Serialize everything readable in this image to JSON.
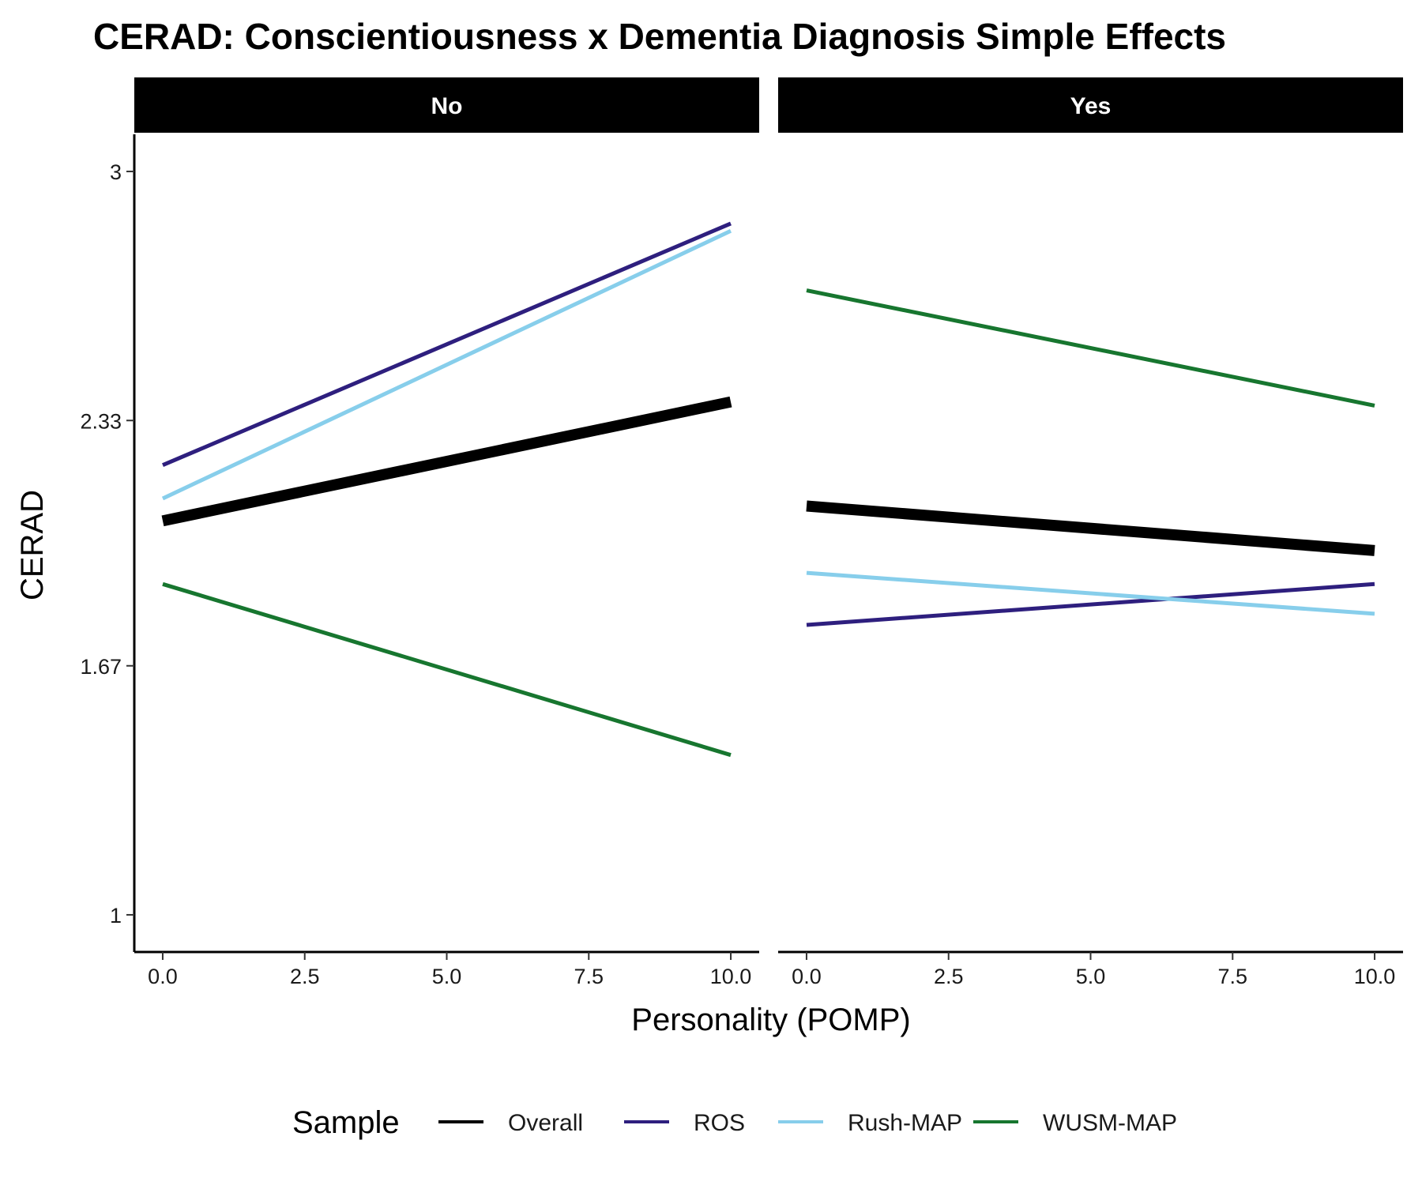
{
  "chart_data": {
    "type": "line",
    "title": "CERAD: Conscientiousness x Dementia Diagnosis Simple Effects",
    "xlabel": "Personality (POMP)",
    "ylabel": "CERAD",
    "xlim": [
      -0.5,
      10.5
    ],
    "ylim": [
      0.9,
      3.1
    ],
    "x_ticks": [
      "0.0",
      "2.5",
      "5.0",
      "7.5",
      "10.0"
    ],
    "x_tick_values": [
      0,
      2.5,
      5,
      7.5,
      10
    ],
    "y_ticks": [
      "1",
      "1.67",
      "2.33",
      "3"
    ],
    "y_tick_values": [
      1,
      1.67,
      2.33,
      3
    ],
    "grid": false,
    "legend": {
      "title": "Sample",
      "position": "bottom",
      "entries": [
        "Overall",
        "ROS",
        "Rush-MAP",
        "WUSM-MAP"
      ]
    },
    "colors": {
      "Overall": "#000000",
      "ROS": "#2e1f7e",
      "Rush-MAP": "#87ceeb",
      "WUSM-MAP": "#17762f"
    },
    "panels": [
      {
        "label": "No",
        "series": [
          {
            "name": "ROS",
            "x": [
              0,
              10
            ],
            "y": [
              2.21,
              2.86
            ]
          },
          {
            "name": "Rush-MAP",
            "x": [
              0,
              10
            ],
            "y": [
              2.12,
              2.84
            ]
          },
          {
            "name": "WUSM-MAP",
            "x": [
              0,
              10
            ],
            "y": [
              1.89,
              1.43
            ]
          },
          {
            "name": "Overall",
            "x": [
              0,
              10
            ],
            "y": [
              2.06,
              2.38
            ]
          }
        ]
      },
      {
        "label": "Yes",
        "series": [
          {
            "name": "ROS",
            "x": [
              0,
              10
            ],
            "y": [
              1.78,
              1.89
            ]
          },
          {
            "name": "Rush-MAP",
            "x": [
              0,
              10
            ],
            "y": [
              1.92,
              1.81
            ]
          },
          {
            "name": "WUSM-MAP",
            "x": [
              0,
              10
            ],
            "y": [
              2.68,
              2.37
            ]
          },
          {
            "name": "Overall",
            "x": [
              0,
              10
            ],
            "y": [
              2.1,
              1.98
            ]
          }
        ]
      }
    ]
  }
}
